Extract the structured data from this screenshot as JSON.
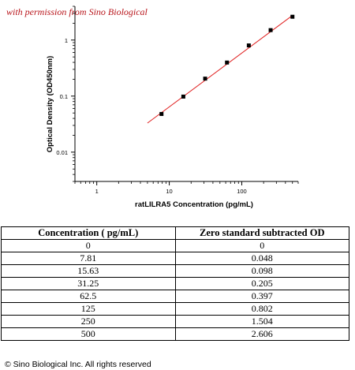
{
  "watermark": "with permission from Sino Biological",
  "chart_data": {
    "type": "scatter",
    "xlabel": "ratLILRA5 Concentration (pg/mL)",
    "ylabel": "Optical Density (OD450nm)",
    "xscale": "log",
    "yscale": "log",
    "xlim": [
      0.5,
      600
    ],
    "ylim": [
      0.003,
      4
    ],
    "x_ticks": [
      1,
      10,
      100
    ],
    "x_tick_labels": [
      "1",
      "10",
      "100"
    ],
    "y_ticks": [
      0.01,
      0.1,
      1
    ],
    "y_tick_labels": [
      "0.01",
      "0.1",
      "1"
    ],
    "series": [
      {
        "points": [
          {
            "x": 7.81,
            "y": 0.048
          },
          {
            "x": 15.63,
            "y": 0.098
          },
          {
            "x": 31.25,
            "y": 0.205
          },
          {
            "x": 62.5,
            "y": 0.397
          },
          {
            "x": 125,
            "y": 0.802
          },
          {
            "x": 250,
            "y": 1.504
          },
          {
            "x": 500,
            "y": 2.606
          }
        ],
        "marker_color": "#000000"
      }
    ],
    "fit_line": {
      "x": [
        5,
        500
      ],
      "y": [
        0.033,
        2.75
      ],
      "color": "#e02020"
    },
    "grid": false,
    "legend": "none"
  },
  "table": {
    "headers": [
      "Concentration ( pg/mL)",
      "Zero standard subtracted OD"
    ],
    "rows": [
      [
        "0",
        "0"
      ],
      [
        "7.81",
        "0.048"
      ],
      [
        "15.63",
        "0.098"
      ],
      [
        "31.25",
        "0.205"
      ],
      [
        "62.5",
        "0.397"
      ],
      [
        "125",
        "0.802"
      ],
      [
        "250",
        "1.504"
      ],
      [
        "500",
        "2.606"
      ]
    ]
  },
  "copyright": "© Sino Biological Inc. All rights reserved"
}
